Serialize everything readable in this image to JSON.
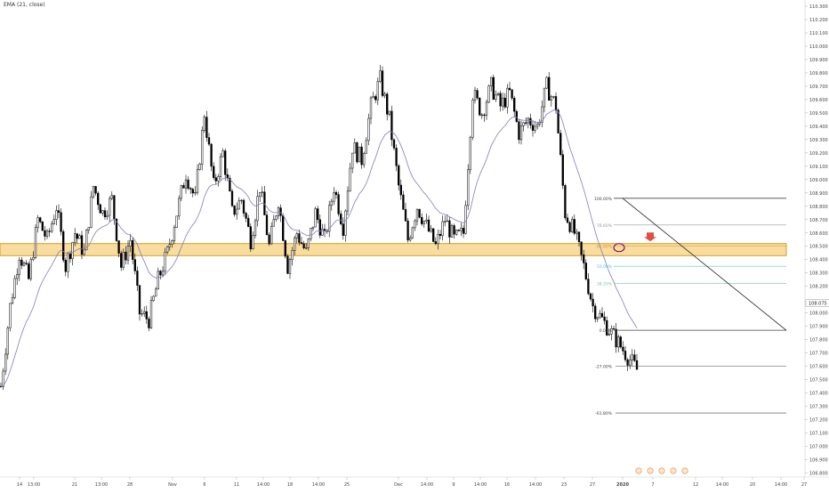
{
  "indicator_label": "EMA (21, close)",
  "colors": {
    "candle": "#000000",
    "ema": "#7e7ec0",
    "zone_fill": "#f6d27e",
    "zone_stroke": "#c68b00",
    "fib_line": "#444444",
    "fib_50": "#5bc0de",
    "fib_382": "#7fc4a0",
    "fib_618": "#e58a2f",
    "arrow": "#e05040",
    "circle": "#800060",
    "axis_text": "#444444",
    "grid": "#e8e8e8"
  },
  "chart_data": {
    "type": "candlestick",
    "title": "",
    "xlabel": "",
    "ylabel": "",
    "ylim": [
      106.77,
      110.32
    ],
    "grid": false,
    "y_ticks": [
      "110.300",
      "110.200",
      "110.100",
      "110.000",
      "109.900",
      "109.800",
      "109.700",
      "109.600",
      "109.500",
      "109.400",
      "109.300",
      "109.200",
      "109.100",
      "109.000",
      "108.900",
      "108.800",
      "108.700",
      "108.600",
      "108.500",
      "108.400",
      "108.300",
      "108.200",
      "108.075",
      "108.000",
      "107.900",
      "107.800",
      "107.700",
      "107.600",
      "107.500",
      "107.400",
      "107.300",
      "107.200",
      "107.100",
      "107.000",
      "106.900",
      "106.800"
    ],
    "x_ticks": [
      "14",
      "13:00",
      "21",
      "13:00",
      "28",
      "Nov",
      "6",
      "11",
      "14:00",
      "18",
      "14:00",
      "25",
      "Dec",
      "14:00",
      "9",
      "14:00",
      "16",
      "14:00",
      "23",
      "27",
      "2020",
      "7",
      "12",
      "14:00",
      "20",
      "14:00",
      "27"
    ],
    "price_label": "108.075",
    "support_zone": {
      "low": 108.43,
      "high": 108.52
    },
    "fib_levels": [
      {
        "label": "100.00%",
        "value": 108.86
      },
      {
        "label": "78.60%",
        "value": 108.66
      },
      {
        "label": "61.80%",
        "value": 108.5
      },
      {
        "label": "50.00%",
        "value": 108.35
      },
      {
        "label": "38.20%",
        "value": 108.22
      },
      {
        "label": "0.00%",
        "value": 107.87
      },
      {
        "label": "-27.00%",
        "value": 107.6
      },
      {
        "label": "-61.80%",
        "value": 107.25
      }
    ],
    "trendline": {
      "from": [
        108.86
      ],
      "to": [
        107.87
      ]
    },
    "path": [
      107.45,
      108.05,
      108.45,
      108.25,
      108.7,
      108.55,
      108.8,
      108.35,
      108.6,
      108.45,
      108.95,
      108.75,
      108.85,
      108.35,
      108.55,
      108.0,
      107.95,
      108.25,
      108.45,
      108.75,
      109.05,
      108.85,
      109.5,
      108.95,
      109.2,
      108.75,
      108.85,
      108.55,
      108.95,
      108.5,
      108.85,
      108.35,
      108.6,
      108.45,
      108.75,
      108.55,
      108.95,
      108.65,
      109.25,
      109.15,
      109.55,
      109.75,
      109.45,
      108.95,
      108.55,
      108.8,
      108.65,
      108.5,
      108.7,
      108.55,
      108.6,
      109.65,
      109.5,
      109.7,
      109.55,
      109.65,
      109.35,
      109.45,
      109.4,
      109.7,
      109.55,
      108.75,
      108.6,
      108.35,
      108.05,
      107.95
    ]
  }
}
